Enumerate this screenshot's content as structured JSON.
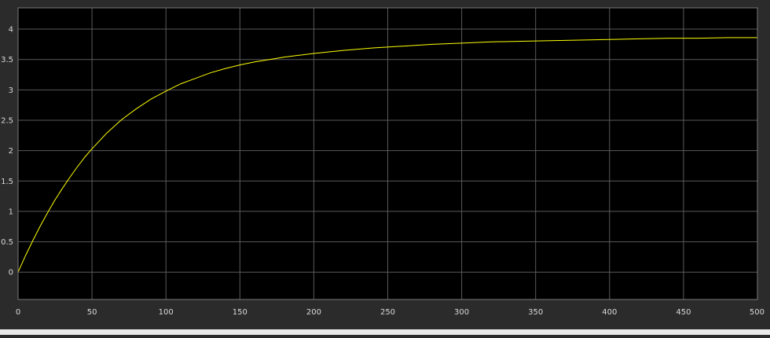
{
  "chart_data": {
    "type": "line",
    "title": "",
    "xlabel": "",
    "ylabel": "",
    "xlim": [
      0,
      500
    ],
    "ylim": [
      -0.45,
      4.35
    ],
    "x_ticks": [
      0,
      50,
      100,
      150,
      200,
      250,
      300,
      350,
      400,
      450,
      500
    ],
    "y_ticks": [
      0,
      0.5,
      1,
      1.5,
      2,
      2.5,
      3,
      3.5,
      4
    ],
    "x_tick_labels": [
      "0",
      "50",
      "100",
      "150",
      "200",
      "250",
      "300",
      "350",
      "400",
      "450",
      "500"
    ],
    "y_tick_labels": [
      "0",
      "0.5",
      "1",
      "1.5",
      "2",
      "2.5",
      "3",
      "3.5",
      "4"
    ],
    "grid": true,
    "legend": "none",
    "series": [
      {
        "color": "#ffff00",
        "x": [
          0,
          5,
          10,
          15,
          20,
          25,
          30,
          35,
          40,
          45,
          50,
          60,
          70,
          80,
          90,
          100,
          110,
          120,
          130,
          140,
          150,
          160,
          170,
          180,
          190,
          200,
          220,
          240,
          260,
          280,
          300,
          320,
          340,
          360,
          380,
          400,
          420,
          440,
          460,
          480,
          500
        ],
        "y": [
          0,
          0.27,
          0.52,
          0.76,
          0.98,
          1.19,
          1.38,
          1.56,
          1.73,
          1.89,
          2.03,
          2.29,
          2.51,
          2.69,
          2.85,
          2.98,
          3.1,
          3.19,
          3.28,
          3.35,
          3.41,
          3.46,
          3.5,
          3.54,
          3.57,
          3.6,
          3.65,
          3.69,
          3.72,
          3.75,
          3.77,
          3.79,
          3.8,
          3.81,
          3.82,
          3.83,
          3.84,
          3.85,
          3.85,
          3.86,
          3.86
        ]
      }
    ]
  },
  "colors": {
    "figure_background": "#2b2b2b",
    "axes_background": "#000000",
    "grid": "#5a5a5a",
    "tick_label": "#d8d8d8",
    "line": "#ffff00"
  }
}
